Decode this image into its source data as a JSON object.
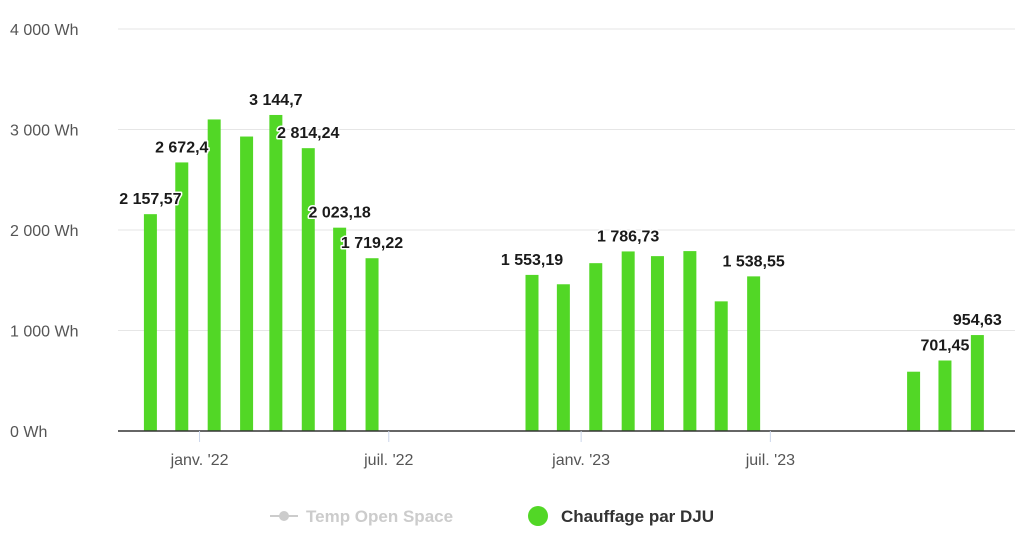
{
  "chart_data": {
    "type": "bar",
    "ylim": [
      0,
      4000
    ],
    "y_ticks": [
      {
        "value": 0,
        "label": "0 Wh"
      },
      {
        "value": 1000,
        "label": "1 000 Wh"
      },
      {
        "value": 2000,
        "label": "2 000 Wh"
      },
      {
        "value": 3000,
        "label": "3 000 Wh"
      },
      {
        "value": 4000,
        "label": "4 000 Wh"
      }
    ],
    "x_range": [
      "2021-10-15",
      "2024-02-20"
    ],
    "x_ticks": [
      {
        "date": "2022-01-01",
        "label": "janv. '22"
      },
      {
        "date": "2022-07-01",
        "label": "juil. '22"
      },
      {
        "date": "2023-01-01",
        "label": "janv. '23"
      },
      {
        "date": "2023-07-01",
        "label": "juil. '23"
      }
    ],
    "grid": true,
    "legend_position": "bottom-center",
    "legend": [
      {
        "name": "Temp Open Space",
        "color": "#cccccc",
        "marker": "line-dot",
        "active": false
      },
      {
        "name": "Chauffage par DJU",
        "color": "#52d726",
        "marker": "dot",
        "active": true
      }
    ],
    "series": [
      {
        "name": "Chauffage par DJU",
        "color": "#52d726",
        "points": [
          {
            "date": "2021-11-15",
            "value": 2157.57,
            "label": "2 157,57"
          },
          {
            "date": "2021-12-15",
            "value": 2672.4,
            "label": "2 672,4"
          },
          {
            "date": "2022-01-15",
            "value": 3100,
            "label": ""
          },
          {
            "date": "2022-02-15",
            "value": 2930,
            "label": ""
          },
          {
            "date": "2022-03-15",
            "value": 3144.7,
            "label": "3 144,7"
          },
          {
            "date": "2022-04-15",
            "value": 2814.24,
            "label": "2 814,24"
          },
          {
            "date": "2022-05-15",
            "value": 2023.18,
            "label": "2 023,18"
          },
          {
            "date": "2022-06-15",
            "value": 1719.22,
            "label": "1 719,22"
          },
          {
            "date": "2022-11-15",
            "value": 1553.19,
            "label": "1 553,19"
          },
          {
            "date": "2022-12-15",
            "value": 1460,
            "label": ""
          },
          {
            "date": "2023-01-15",
            "value": 1670,
            "label": ""
          },
          {
            "date": "2023-02-15",
            "value": 1786.73,
            "label": "1 786,73"
          },
          {
            "date": "2023-03-15",
            "value": 1740,
            "label": ""
          },
          {
            "date": "2023-04-15",
            "value": 1790,
            "label": ""
          },
          {
            "date": "2023-05-15",
            "value": 1290,
            "label": ""
          },
          {
            "date": "2023-06-15",
            "value": 1538.55,
            "label": "1 538,55"
          },
          {
            "date": "2023-11-15",
            "value": 590,
            "label": ""
          },
          {
            "date": "2023-12-15",
            "value": 701.45,
            "label": "701,45"
          },
          {
            "date": "2024-01-15",
            "value": 954.63,
            "label": "954,63"
          }
        ]
      }
    ]
  }
}
